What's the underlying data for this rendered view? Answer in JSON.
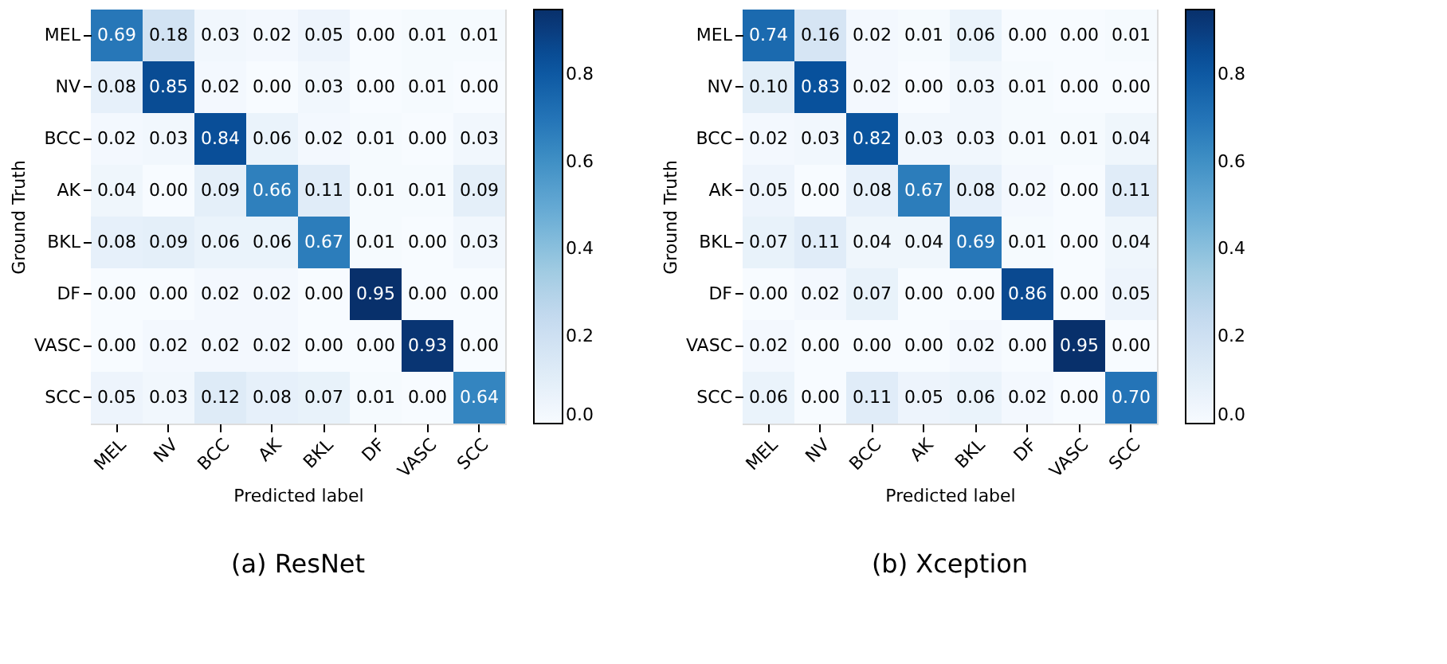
{
  "chart_data": [
    {
      "type": "heatmap",
      "title": "(a) ResNet",
      "xlabel": "Predicted label",
      "ylabel": "Ground Truth",
      "categories": [
        "MEL",
        "NV",
        "BCC",
        "AK",
        "BKL",
        "DF",
        "VASC",
        "SCC"
      ],
      "y_categories": [
        "MEL",
        "NV",
        "BCC",
        "AK",
        "BKL",
        "DF",
        "VASC",
        "SCC"
      ],
      "cells": [
        [
          0.69,
          0.18,
          0.03,
          0.02,
          0.05,
          0.0,
          0.01,
          0.01
        ],
        [
          0.08,
          0.85,
          0.02,
          0.0,
          0.03,
          0.0,
          0.01,
          0.0
        ],
        [
          0.02,
          0.03,
          0.84,
          0.06,
          0.02,
          0.01,
          0.0,
          0.03
        ],
        [
          0.04,
          0.0,
          0.09,
          0.66,
          0.11,
          0.01,
          0.01,
          0.09
        ],
        [
          0.08,
          0.09,
          0.06,
          0.06,
          0.67,
          0.01,
          0.0,
          0.03
        ],
        [
          0.0,
          0.0,
          0.02,
          0.02,
          0.0,
          0.95,
          0.0,
          0.0
        ],
        [
          0.0,
          0.02,
          0.02,
          0.02,
          0.0,
          0.0,
          0.93,
          0.0
        ],
        [
          0.05,
          0.03,
          0.12,
          0.08,
          0.07,
          0.01,
          0.0,
          0.64
        ]
      ],
      "cell_labels": [
        [
          "0.69",
          "0.18",
          "0.03",
          "0.02",
          "0.05",
          "0.00",
          "0.01",
          "0.01"
        ],
        [
          "0.08",
          "0.85",
          "0.02",
          "0.00",
          "0.03",
          "0.00",
          "0.01",
          "0.00"
        ],
        [
          "0.02",
          "0.03",
          "0.84",
          "0.06",
          "0.02",
          "0.01",
          "0.00",
          "0.03"
        ],
        [
          "0.04",
          "0.00",
          "0.09",
          "0.66",
          "0.11",
          "0.01",
          "0.01",
          "0.09"
        ],
        [
          "0.08",
          "0.09",
          "0.06",
          "0.06",
          "0.67",
          "0.01",
          "0.00",
          "0.03"
        ],
        [
          "0.00",
          "0.00",
          "0.02",
          "0.02",
          "0.00",
          "0.95",
          "0.00",
          "0.00"
        ],
        [
          "0.00",
          "0.02",
          "0.02",
          "0.02",
          "0.00",
          "0.00",
          "0.93",
          "0.00"
        ],
        [
          "0.05",
          "0.03",
          "0.12",
          "0.08",
          "0.07",
          "0.01",
          "0.00",
          "0.64"
        ]
      ],
      "clim": [
        0,
        0.95
      ],
      "cticks": [
        {
          "value": 0,
          "label": "0.0"
        },
        0.2,
        0.4,
        0.6,
        0.8
      ],
      "grid": false
    },
    {
      "type": "heatmap",
      "title": "(b) Xception",
      "xlabel": "Predicted label",
      "ylabel": "Ground Truth",
      "categories": [
        "MEL",
        "NV",
        "BCC",
        "AK",
        "BKL",
        "DF",
        "VASC",
        "SCC"
      ],
      "y_categories": [
        "MEL",
        "NV",
        "BCC",
        "AK",
        "BKL",
        "DF",
        "VASC",
        "SCC"
      ],
      "cells": [
        [
          0.74,
          0.16,
          0.02,
          0.01,
          0.06,
          0.0,
          0.0,
          0.01
        ],
        [
          0.1,
          0.83,
          0.02,
          0.0,
          0.03,
          0.01,
          0.0,
          0.0
        ],
        [
          0.02,
          0.03,
          0.82,
          0.03,
          0.03,
          0.01,
          0.01,
          0.04
        ],
        [
          0.05,
          0.0,
          0.08,
          0.67,
          0.08,
          0.02,
          0.0,
          0.11
        ],
        [
          0.07,
          0.11,
          0.04,
          0.04,
          0.69,
          0.01,
          0.0,
          0.04
        ],
        [
          0.0,
          0.02,
          0.07,
          0.0,
          0.0,
          0.86,
          0.0,
          0.05
        ],
        [
          0.02,
          0.0,
          0.0,
          0.0,
          0.02,
          0.0,
          0.95,
          0.0
        ],
        [
          0.06,
          0.0,
          0.11,
          0.05,
          0.06,
          0.02,
          0.0,
          0.7
        ]
      ],
      "cell_labels": [
        [
          "0.74",
          "0.16",
          "0.02",
          "0.01",
          "0.06",
          "0.00",
          "0.00",
          "0.01"
        ],
        [
          "0.10",
          "0.83",
          "0.02",
          "0.00",
          "0.03",
          "0.01",
          "0.00",
          "0.00"
        ],
        [
          "0.02",
          "0.03",
          "0.82",
          "0.03",
          "0.03",
          "0.01",
          "0.01",
          "0.04"
        ],
        [
          "0.05",
          "0.00",
          "0.08",
          "0.67",
          "0.08",
          "0.02",
          "0.00",
          "0.11"
        ],
        [
          "0.07",
          "0.11",
          "0.04",
          "0.04",
          "0.69",
          "0.01",
          "0.00",
          "0.04"
        ],
        [
          "0.00",
          "0.02",
          "0.07",
          "0.00",
          "0.00",
          "0.86",
          "0.00",
          "0.05"
        ],
        [
          "0.02",
          "0.00",
          "0.00",
          "0.00",
          "0.02",
          "0.00",
          "0.95",
          "0.00"
        ],
        [
          "0.06",
          "0.00",
          "0.11",
          "0.05",
          "0.06",
          "0.02",
          "0.00",
          "0.70"
        ]
      ],
      "clim": [
        0,
        0.95
      ],
      "cticks": [
        {
          "value": 0,
          "label": "0.0"
        },
        0.2,
        0.4,
        0.6,
        0.8
      ],
      "grid": false
    }
  ]
}
